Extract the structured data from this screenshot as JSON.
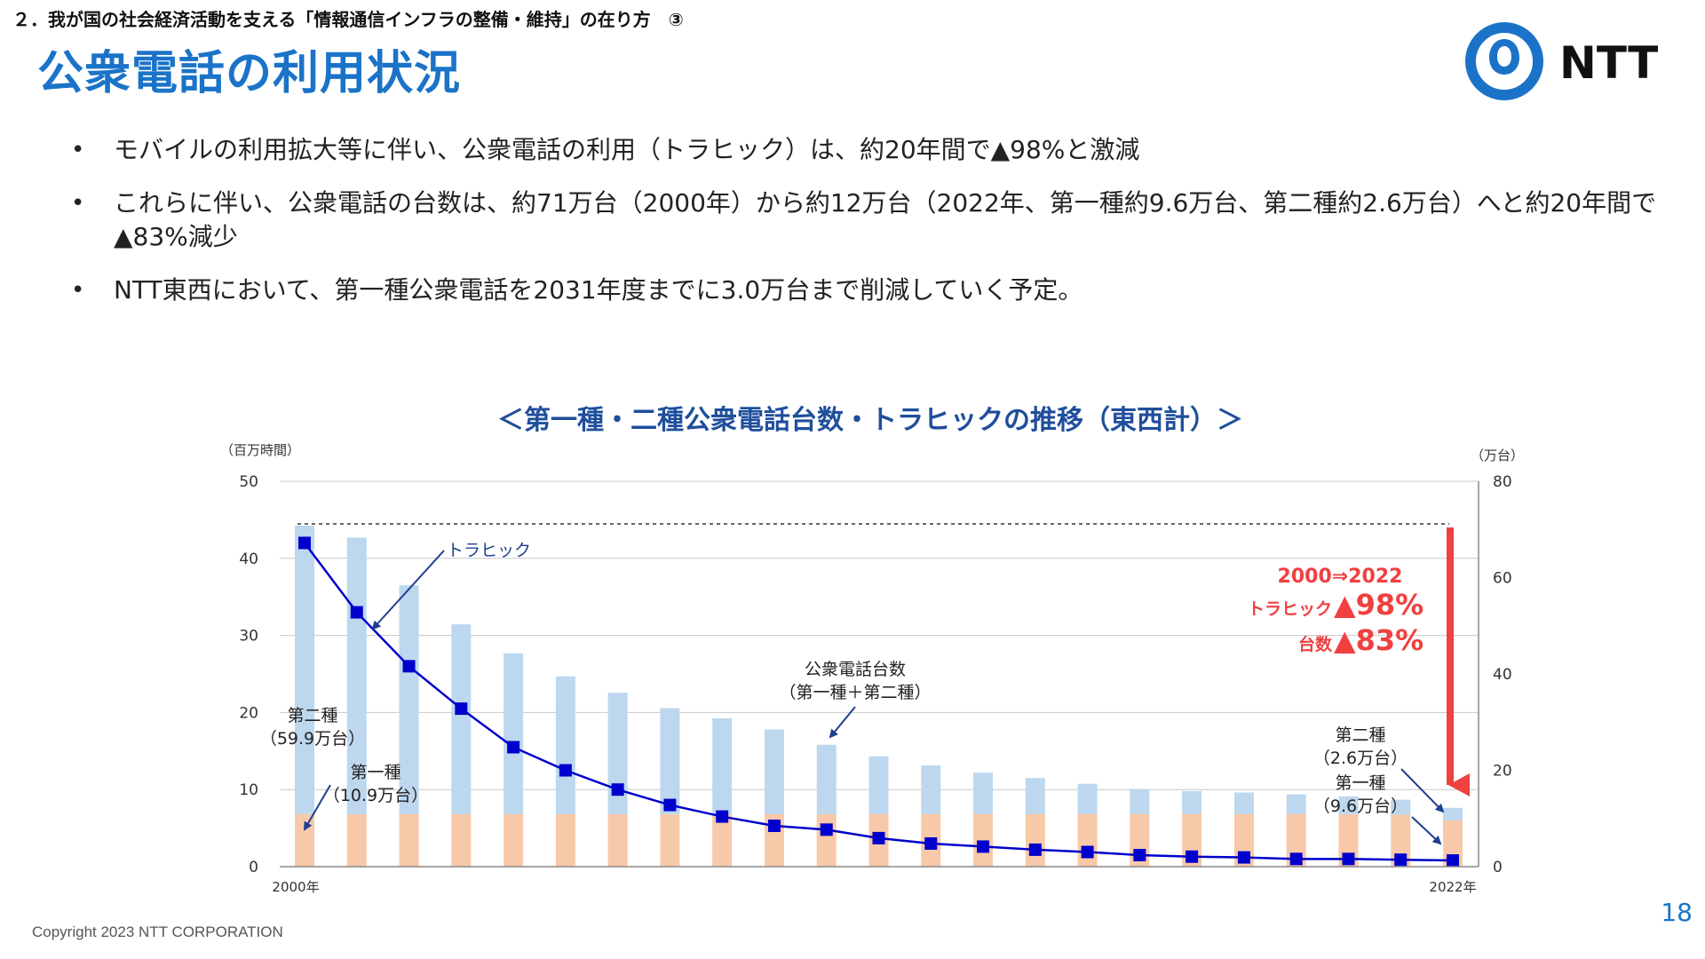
{
  "header": {
    "section": "２．我が国の社会経済活動を支える「情報通信インフラの整備・維持」の在り方　③",
    "title": "公衆電話の利用状況"
  },
  "logo": {
    "text": "NTT",
    "color": "#1a73c8",
    "icon": "ntt-ring-logo-icon"
  },
  "bullets": [
    "モバイルの利用拡大等に伴い、公衆電話の利用（トラヒック）は、約20年間で▲98%と激減",
    "これらに伴い、公衆電話の台数は、約71万台（2000年）から約12万台（2022年、第一種約9.6万台、第二種約2.6万台）へと約20年間で▲83%減少",
    "NTT東西において、第一種公衆電話を2031年度までに3.0万台まで削減していく予定。"
  ],
  "chart_data": {
    "type": "bar",
    "title": "＜第一種・二種公衆電話台数・トラヒックの推移（東西計）＞",
    "left_axis": {
      "unit": "（百万時間）",
      "ylim": [
        0,
        50
      ],
      "ticks": [
        "0",
        "10",
        "20",
        "30",
        "40",
        "50"
      ]
    },
    "right_axis": {
      "unit": "（万台）",
      "ylim": [
        0,
        80
      ],
      "ticks": [
        "0",
        "20",
        "40",
        "60",
        "80"
      ]
    },
    "x_tick_labels": [
      "2000年",
      "2022年"
    ],
    "years": [
      2000,
      2001,
      2002,
      2003,
      2004,
      2005,
      2006,
      2007,
      2008,
      2009,
      2010,
      2011,
      2012,
      2013,
      2014,
      2015,
      2016,
      2017,
      2018,
      2019,
      2020,
      2021,
      2022
    ],
    "series": [
      {
        "name": "第一種",
        "axis": "right",
        "kind": "stacked-bar",
        "color": "#f8c9a8",
        "values": [
          10.9,
          10.9,
          10.9,
          10.9,
          10.9,
          10.9,
          10.9,
          10.9,
          10.9,
          10.9,
          10.9,
          10.9,
          10.9,
          10.9,
          10.9,
          10.9,
          10.9,
          10.9,
          10.9,
          10.9,
          10.9,
          10.8,
          9.6
        ]
      },
      {
        "name": "第二種",
        "axis": "right",
        "kind": "stacked-bar",
        "color": "#bdd7ee",
        "values": [
          59.9,
          57.4,
          47.5,
          39.4,
          33.4,
          28.6,
          25.2,
          22.0,
          19.9,
          17.6,
          14.4,
          12.0,
          10.1,
          8.6,
          7.5,
          6.3,
          5.2,
          4.8,
          4.5,
          4.1,
          3.7,
          3.1,
          2.6
        ]
      },
      {
        "name": "トラヒック",
        "axis": "left",
        "kind": "line",
        "color": "#0000cc",
        "values": [
          42.0,
          33.0,
          26.0,
          20.5,
          15.5,
          12.5,
          10.0,
          8.0,
          6.5,
          5.3,
          4.8,
          3.7,
          3.0,
          2.6,
          2.2,
          1.9,
          1.5,
          1.3,
          1.2,
          1.0,
          1.0,
          0.9,
          0.8
        ]
      }
    ],
    "annotations": {
      "traffic_label": "トラヒック",
      "total_units_label_1": "公衆電話台数",
      "total_units_label_2": "（第一種＋第二種）",
      "start_type2_1": "第二種",
      "start_type2_2": "（59.9万台）",
      "start_type1_1": "第一種",
      "start_type1_2": "（10.9万台）",
      "end_type2_1": "第二種",
      "end_type2_2": "（2.6万台）",
      "end_type1_1": "第一種",
      "end_type1_2": "（9.6万台）",
      "summary_period": "2000⇒2022",
      "summary_traffic_label": "トラヒック",
      "summary_traffic_value": "▲98%",
      "summary_units_label": "台数",
      "summary_units_value": "▲83%",
      "summary_color": "#f04040"
    }
  },
  "footer": {
    "copyright": "Copyright 2023 NTT CORPORATION",
    "page_number": "18"
  }
}
